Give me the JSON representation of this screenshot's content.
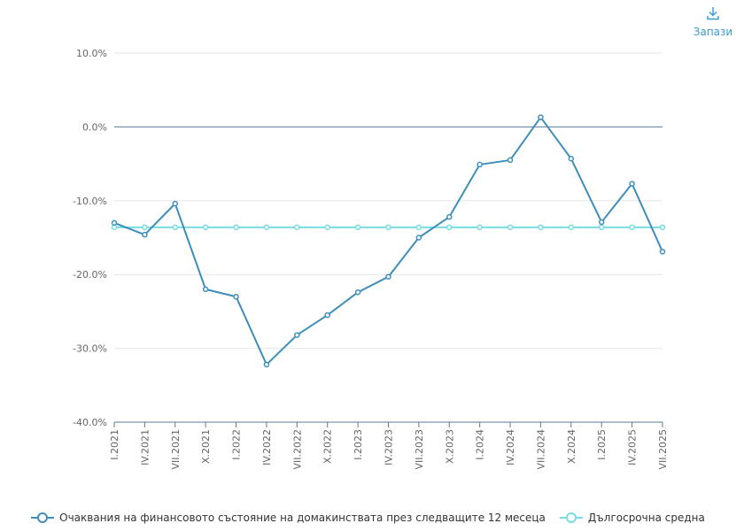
{
  "toolbar": {
    "save_label": "Запази"
  },
  "colors": {
    "series_main": "#3e8ebc",
    "series_avg": "#76dde3",
    "grid": "#e6e6e6",
    "axis": "#5a7a9a"
  },
  "chart_data": {
    "type": "line",
    "categories": [
      "I.2021",
      "IV.2021",
      "VII.2021",
      "X.2021",
      "I.2022",
      "IV.2022",
      "VII.2022",
      "X.2022",
      "I.2023",
      "IV.2023",
      "VII.2023",
      "X.2023",
      "I.2024",
      "IV.2024",
      "VII.2024",
      "X.2024",
      "I.2025",
      "IV.2025",
      "VII.2025"
    ],
    "ylim": [
      -40,
      10
    ],
    "yticks": [
      10,
      0,
      -10,
      -20,
      -30,
      -40
    ],
    "ytick_labels": [
      "10.0%",
      "0.0%",
      "-10.0%",
      "-20.0%",
      "-30.0%",
      "-40.0%"
    ],
    "grid": true,
    "legend_position": "bottom",
    "series": [
      {
        "name": "Очаквания на финансовото състояние на домакинствата през следващите 12 месеца",
        "values": [
          -13.0,
          -14.6,
          -10.4,
          -22.0,
          -23.0,
          -32.2,
          -28.2,
          -25.5,
          -22.4,
          -20.3,
          -15.0,
          -12.2,
          -5.1,
          -4.5,
          1.3,
          -4.3,
          -12.9,
          -7.7,
          -16.9
        ]
      },
      {
        "name": "Дългосрочна средна",
        "values": [
          -13.6,
          -13.6,
          -13.6,
          -13.6,
          -13.6,
          -13.6,
          -13.6,
          -13.6,
          -13.6,
          -13.6,
          -13.6,
          -13.6,
          -13.6,
          -13.6,
          -13.6,
          -13.6,
          -13.6,
          -13.6,
          -13.6
        ]
      }
    ]
  }
}
